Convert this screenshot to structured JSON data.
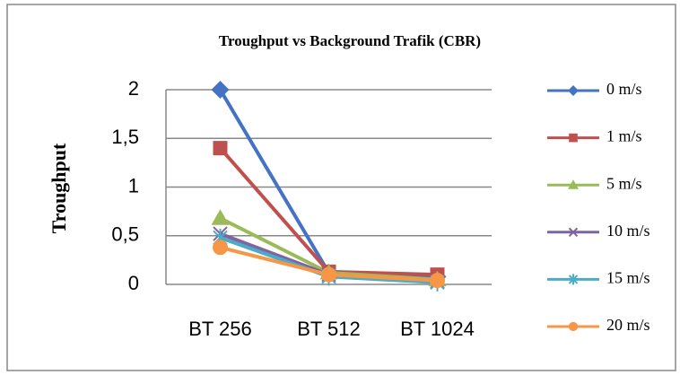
{
  "chart_data": {
    "type": "line",
    "title": "Troughput vs Background Trafik (CBR)",
    "y_label": "Troughput",
    "categories": [
      "BT 256",
      "BT 512",
      "BT 1024"
    ],
    "series": [
      {
        "name": "0 m/s",
        "color": "#4472c4",
        "marker": "diamond",
        "values": [
          2,
          0.12,
          0.08
        ]
      },
      {
        "name": "1 m/s",
        "color": "#c0504d",
        "marker": "square",
        "values": [
          1.4,
          0.13,
          0.1
        ]
      },
      {
        "name": "5 m/s",
        "color": "#9bbb59",
        "marker": "triangle",
        "values": [
          0.68,
          0.12,
          0.05
        ]
      },
      {
        "name": "10 m/s",
        "color": "#8064a2",
        "marker": "x",
        "values": [
          0.52,
          0.1,
          0.03
        ]
      },
      {
        "name": "15 m/s",
        "color": "#4bacc6",
        "marker": "asterisk",
        "values": [
          0.48,
          0.08,
          0.02
        ]
      },
      {
        "name": "20 m/s",
        "color": "#f79646",
        "marker": "circle",
        "values": [
          0.38,
          0.1,
          0.04
        ]
      }
    ],
    "ylim": [
      0,
      2
    ],
    "yticks": [
      0,
      {
        "value": 0.5,
        "label": "0,5"
      },
      1,
      {
        "value": 1.5,
        "label": "1,5"
      },
      2
    ],
    "grid": true,
    "legend": "right"
  }
}
